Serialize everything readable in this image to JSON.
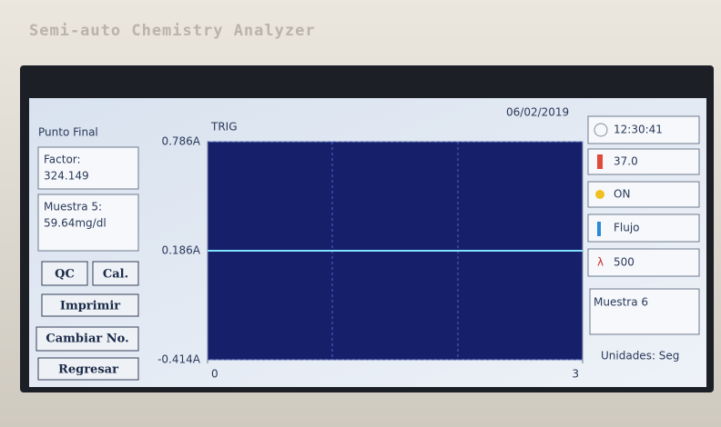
{
  "device_label": "Semi-auto Chemistry Analyzer",
  "screen": {
    "mode": "Punto Final",
    "date": "06/02/2019",
    "factor": {
      "label": "Factor:",
      "value": "324.149"
    },
    "result": {
      "label": "Muestra 5:",
      "value": "59.64mg/dl"
    },
    "buttons": [
      "QC",
      "Cal.",
      "Imprimir",
      "Cambiar No.",
      "Regresar"
    ],
    "status": {
      "time": "12:30:41",
      "temperature": "37.0",
      "lamp": "ON",
      "flow": "Flujo",
      "wavelength": "500"
    },
    "sample": "Muestra 6",
    "units": "Unidades: Seg"
  },
  "chart_data": {
    "type": "line",
    "title": "TRIG",
    "x": [
      0,
      3
    ],
    "values": [
      0.186,
      0.186
    ],
    "color": "#7fe0ff",
    "xlim": [
      0,
      3
    ],
    "xticks": [
      0,
      3
    ],
    "ylim": [
      -0.414,
      0.786
    ],
    "yticks": [
      {
        "value": 0.786,
        "label": "0.786A"
      },
      {
        "value": 0.186,
        "label": "0.186A"
      },
      {
        "value": -0.414,
        "label": "-0.414A"
      }
    ],
    "grid": true
  }
}
